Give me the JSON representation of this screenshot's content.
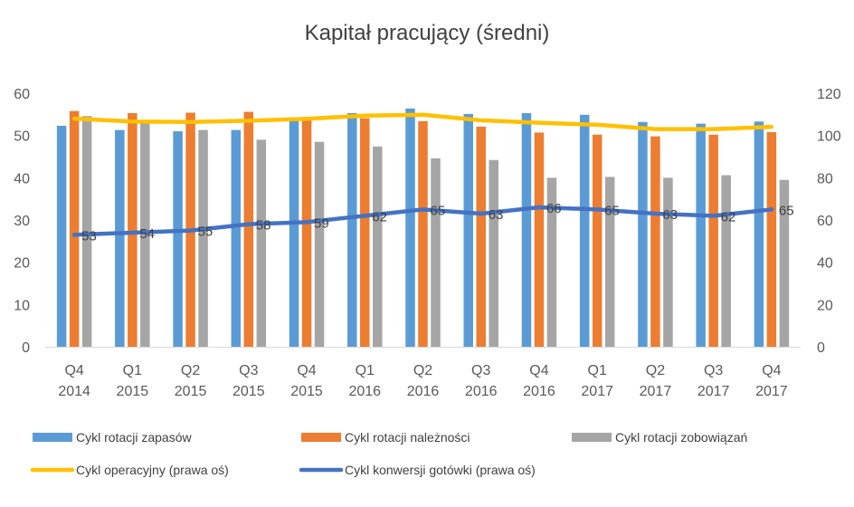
{
  "chart_data": {
    "type": "bar",
    "title": "Kapitał pracujący (średni)",
    "categories": [
      [
        "Q4",
        "2014"
      ],
      [
        "Q1",
        "2015"
      ],
      [
        "Q2",
        "2015"
      ],
      [
        "Q3",
        "2015"
      ],
      [
        "Q4",
        "2015"
      ],
      [
        "Q1",
        "2016"
      ],
      [
        "Q2",
        "2016"
      ],
      [
        "Q3",
        "2016"
      ],
      [
        "Q4",
        "2016"
      ],
      [
        "Q1",
        "2017"
      ],
      [
        "Q2",
        "2017"
      ],
      [
        "Q3",
        "2017"
      ],
      [
        "Q4",
        "2017"
      ]
    ],
    "y_left": {
      "min": 0,
      "max": 60,
      "ticks": [
        0,
        10,
        20,
        30,
        40,
        50,
        60
      ]
    },
    "y_right": {
      "min": 0,
      "max": 120,
      "ticks": [
        0,
        20,
        40,
        60,
        80,
        100,
        120
      ]
    },
    "grid": false,
    "legend_position": "bottom",
    "series": [
      {
        "name": "Cykl rotacji zapasów",
        "kind": "bar",
        "axis": "left",
        "color": "#5B9BD5",
        "values": [
          52.3,
          51.3,
          51.0,
          51.3,
          53.8,
          55.3,
          56.4,
          55.1,
          55.3,
          54.9,
          53.2,
          52.8,
          53.3
        ]
      },
      {
        "name": "Cykl rotacji należności",
        "kind": "bar",
        "axis": "left",
        "color": "#ED7D31",
        "values": [
          55.8,
          55.3,
          55.4,
          55.6,
          54.1,
          54.1,
          53.4,
          52.1,
          50.7,
          50.2,
          49.8,
          50.2,
          50.8
        ]
      },
      {
        "name": "Cykl rotacji zobowiązań",
        "kind": "bar",
        "axis": "left",
        "color": "#A5A5A5",
        "values": [
          54.6,
          53.2,
          51.3,
          49.0,
          48.5,
          47.4,
          44.6,
          44.2,
          40.0,
          40.2,
          40.0,
          40.6,
          39.5
        ]
      },
      {
        "name": "Cykl operacyjny (prawa oś)",
        "kind": "line",
        "axis": "right",
        "color": "#FFC000",
        "values": [
          108,
          106.6,
          106.4,
          107.0,
          107.9,
          109.4,
          109.8,
          107.2,
          106.0,
          105.1,
          103.0,
          103.0,
          104.1
        ]
      },
      {
        "name": "Cykl konwersji gotówki (prawa oś)",
        "kind": "line",
        "axis": "right",
        "color": "#4472C4",
        "values": [
          53,
          54,
          55,
          58,
          59,
          62,
          65,
          63,
          66,
          65,
          63,
          62,
          65
        ],
        "labels": [
          "53",
          "54",
          "55",
          "58",
          "59",
          "62",
          "65",
          "63",
          "66",
          "65",
          "63",
          "62",
          "65"
        ]
      }
    ]
  }
}
